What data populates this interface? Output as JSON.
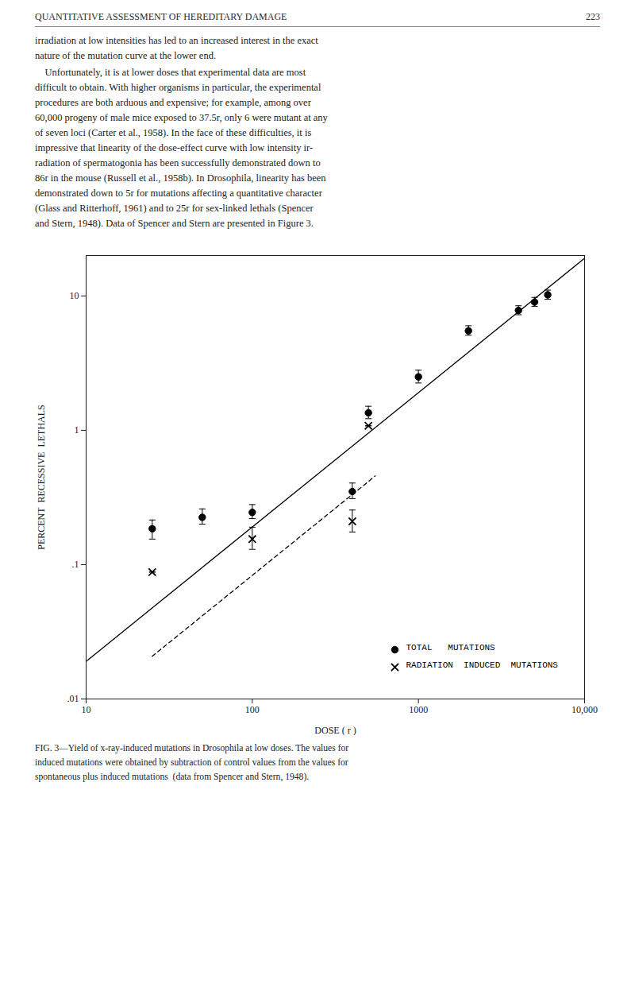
{
  "chart_data": {
    "type": "scatter",
    "header_text": "QUANTITATIVE ASSESSMENT OF HEREDITARY DAMAGE",
    "page_number": "223",
    "paragraphs": [
      "irradiation at low intensities has led to an increased interest in the exact\nnature of the mutation curve at the lower end.",
      "    Unfortunately, it is at lower doses that experimental data are most\ndifficult to obtain. With higher organisms in particular, the experimental\nprocedures are both arduous and expensive; for example, among over\n60,000 progeny of male mice exposed to 37.5r, only 6 were mutant at any\nof seven loci (Carter et al., 1958). In the face of these difficulties, it is\nimpressive that linearity of the dose-effect curve with low intensity ir-\nradiation of spermatogonia has been successfully demonstrated down to\n86r in the mouse (Russell et al., 1958b). In Drosophila, linearity has been\ndemonstrated down to 5r for mutations affecting a quantitative character\n(Glass and Ritterhoff, 1961) and to 25r for sex-linked lethals (Spencer\nand Stern, 1948). Data of Spencer and Stern are presented in Figure 3."
    ],
    "caption": "FIG. 3—Yield of x-ray-induced mutations in Drosophila at low doses. The values for\ninduced mutations were obtained by subtraction of control values from the values for\nspontaneous plus induced mutations  (data from Spencer and Stern, 1948).",
    "xlabel": "DOSE ( r )",
    "ylabel": "PERCENT  RECESSIVE  LETHALS",
    "log": true,
    "grid": false,
    "legend": "lower right",
    "xlim": [
      10,
      10000
    ],
    "ylim": [
      0.01,
      20
    ],
    "xticks": [
      10,
      100,
      1000,
      {
        "value": 10000,
        "label": "10,000"
      }
    ],
    "yticks": [
      {
        "value": 0.01,
        "label": ".01"
      },
      {
        "value": 0.1,
        "label": ".1"
      },
      1,
      10
    ],
    "series": [
      {
        "name": "TOTAL   MUTATIONS",
        "type": "scatter",
        "marker": "o",
        "color": "black",
        "x": [
          25,
          50,
          100,
          400,
          500,
          1000,
          2000,
          4000,
          5000,
          6000
        ],
        "values": [
          0.185,
          0.225,
          0.245,
          0.35,
          1.35,
          2.5,
          5.5,
          7.8,
          9.0,
          10.2
        ],
        "yerr_low": [
          0.03,
          0.025,
          0.025,
          0.04,
          0.13,
          0.25,
          0.4,
          0.55,
          0.65,
          0.75
        ],
        "yerr_high": [
          0.03,
          0.035,
          0.035,
          0.055,
          0.16,
          0.3,
          0.5,
          0.65,
          0.75,
          0.85
        ]
      },
      {
        "name": "RADIATION  INDUCED  MUTATIONS",
        "type": "scatter",
        "marker": "x",
        "color": "black",
        "x": [
          25,
          100,
          400,
          500
        ],
        "values": [
          0.088,
          0.155,
          0.21,
          1.08
        ],
        "yerr_low": [
          0.0,
          0.025,
          0.035,
          0.0
        ],
        "yerr_high": [
          0.0,
          0.035,
          0.045,
          0.0
        ]
      },
      {
        "type": "line",
        "line_style": "solid",
        "color": "black",
        "x": [
          10,
          10000
        ],
        "values": [
          0.0190546,
          19.0546
        ]
      },
      {
        "type": "line",
        "line_style": "dashed",
        "color": "black",
        "x": [
          25,
          550
        ],
        "values": [
          0.0207941,
          0.45747
        ]
      }
    ]
  }
}
